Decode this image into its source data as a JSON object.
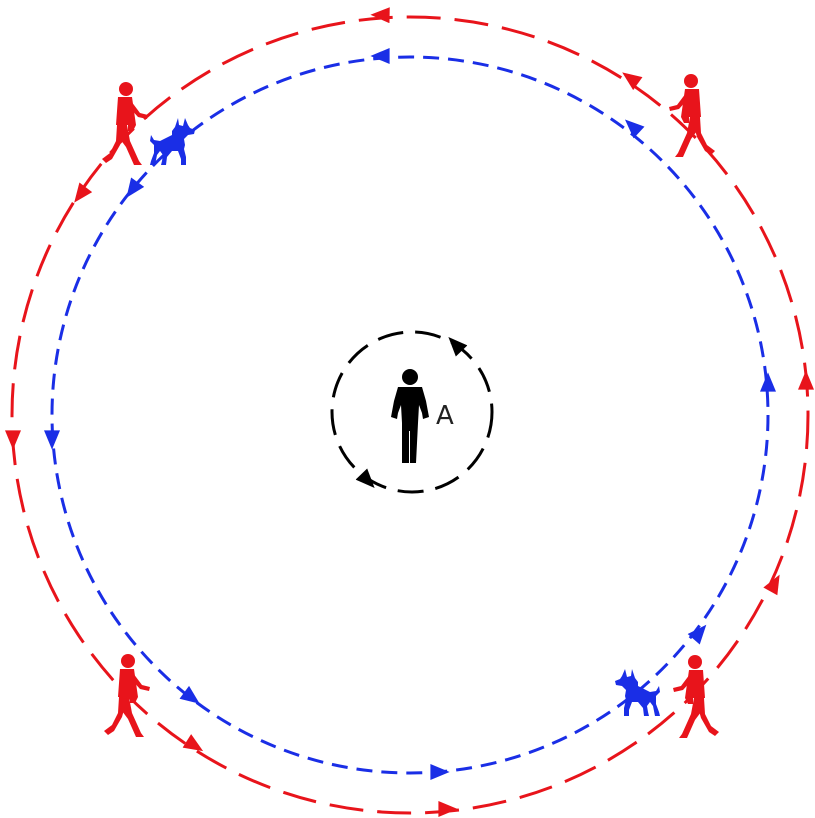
{
  "center_label": "A",
  "colors": {
    "outer_path": "#e8141b",
    "inner_path": "#1a2ee6",
    "center_path": "#000000",
    "walker": "#e8141b",
    "dog": "#1a2ee6",
    "center_person": "#000000"
  },
  "icons": {
    "walker": "walking-person-icon",
    "dog": "dog-icon",
    "center_person": "standing-person-icon",
    "arrow": "arrowhead-icon"
  }
}
